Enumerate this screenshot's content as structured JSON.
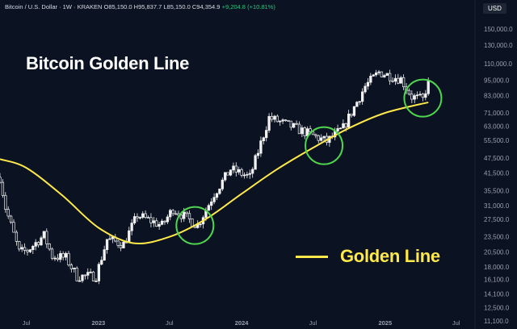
{
  "header": {
    "symbol": "Bitcoin / U.S. Dollar · 1W · KRAKEN",
    "o": "O85,150.0",
    "h": "H95,837.7",
    "l": "L85,150.0",
    "c": "C94,354.9",
    "chg": "+9,204.8 (+10.81%)"
  },
  "currency_label": "USD",
  "title": "Bitcoin Golden Line",
  "legend": {
    "label": "Golden Line"
  },
  "colors": {
    "background": "#0b1222",
    "candles": "#f2f2f2",
    "golden_line": "#ffe94a",
    "highlight_circle": "#4fd64f",
    "positive": "#2ec27e"
  },
  "chart_data": {
    "type": "candlestick",
    "y_scale": "log",
    "ylim": [
      11100,
      150000
    ],
    "xlim": [
      "2022-04-25",
      "2025-08-18"
    ],
    "grid": false,
    "y_ticks": [
      "150,000.0",
      "130,000.0",
      "110,000.0",
      "95,000.0",
      "83,000.0",
      "71,000.0",
      "63,000.0",
      "55,500.0",
      "47,500.0",
      "41,500.0",
      "35,500.0",
      "31,000.0",
      "27,500.0",
      "23,500.0",
      "20,500.0",
      "18,000.0",
      "16,100.0",
      "14,100.0",
      "12,500.0",
      "11,100.0"
    ],
    "x_ticks": [
      {
        "label": "Jul",
        "date": "2022-07-01"
      },
      {
        "label": "2023",
        "date": "2023-01-01"
      },
      {
        "label": "Jul",
        "date": "2023-07-01"
      },
      {
        "label": "2024",
        "date": "2024-01-01"
      },
      {
        "label": "Jul",
        "date": "2024-07-01"
      },
      {
        "label": "2025",
        "date": "2025-01-01"
      },
      {
        "label": "Jul",
        "date": "2025-07-01"
      }
    ],
    "price_points": [
      [
        "2022-04-25",
        40000
      ],
      [
        "2022-05-09",
        30500
      ],
      [
        "2022-06-13",
        20500
      ],
      [
        "2022-07-04",
        20800
      ],
      [
        "2022-08-15",
        23800
      ],
      [
        "2022-09-05",
        19800
      ],
      [
        "2022-10-10",
        19500
      ],
      [
        "2022-11-07",
        16500
      ],
      [
        "2022-12-26",
        16600
      ],
      [
        "2023-01-23",
        23000
      ],
      [
        "2023-03-06",
        22000
      ],
      [
        "2023-04-10",
        28500
      ],
      [
        "2023-06-12",
        26000
      ],
      [
        "2023-07-10",
        30200
      ],
      [
        "2023-09-11",
        26000
      ],
      [
        "2023-10-23",
        34500
      ],
      [
        "2023-12-04",
        43000
      ],
      [
        "2024-01-22",
        40000
      ],
      [
        "2024-03-11",
        68000
      ],
      [
        "2024-05-06",
        63000
      ],
      [
        "2024-07-01",
        58000
      ],
      [
        "2024-08-05",
        55000
      ],
      [
        "2024-09-16",
        62000
      ],
      [
        "2024-11-11",
        90000
      ],
      [
        "2024-12-16",
        102000
      ],
      [
        "2025-02-10",
        96000
      ],
      [
        "2025-03-10",
        82000
      ],
      [
        "2025-04-07",
        80000
      ],
      [
        "2025-04-21",
        94354.9
      ]
    ],
    "series": [
      {
        "name": "Golden Line",
        "points": [
          [
            "2022-04-25",
            47000
          ],
          [
            "2022-07-01",
            43500
          ],
          [
            "2022-10-01",
            34000
          ],
          [
            "2023-01-01",
            25500
          ],
          [
            "2023-04-01",
            22200
          ],
          [
            "2023-07-01",
            23500
          ],
          [
            "2023-10-01",
            27500
          ],
          [
            "2024-01-01",
            34500
          ],
          [
            "2024-04-01",
            43000
          ],
          [
            "2024-07-01",
            52000
          ],
          [
            "2024-10-01",
            62000
          ],
          [
            "2025-01-01",
            71000
          ],
          [
            "2025-04-21",
            78000
          ]
        ]
      }
    ],
    "highlight_circles": [
      {
        "date": "2023-09-04",
        "price": 26000
      },
      {
        "date": "2024-07-29",
        "price": 53000
      },
      {
        "date": "2025-04-07",
        "price": 81000
      }
    ]
  }
}
